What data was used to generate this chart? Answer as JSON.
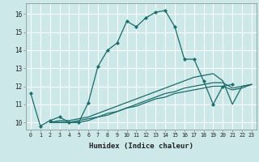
{
  "xlabel": "Humidex (Indice chaleur)",
  "bg_color": "#cce8e8",
  "grid_color": "#ffffff",
  "line_color": "#1a6b6b",
  "xlim": [
    -0.5,
    23.5
  ],
  "ylim": [
    9.6,
    16.6
  ],
  "yticks": [
    10,
    11,
    12,
    13,
    14,
    15,
    16
  ],
  "xticks": [
    0,
    1,
    2,
    3,
    4,
    5,
    6,
    7,
    8,
    9,
    10,
    11,
    12,
    13,
    14,
    15,
    16,
    17,
    18,
    19,
    20,
    21,
    22,
    23
  ],
  "series": [
    {
      "x": [
        0,
        1,
        2,
        3,
        4,
        5,
        6,
        7,
        8,
        9,
        10,
        11,
        12,
        13,
        14,
        15,
        16,
        17,
        18,
        19,
        20,
        21
      ],
      "y": [
        11.6,
        9.8,
        10.1,
        10.3,
        10.0,
        10.0,
        11.1,
        13.1,
        14.0,
        14.4,
        15.6,
        15.3,
        15.8,
        16.1,
        16.2,
        15.3,
        13.5,
        13.5,
        12.3,
        11.0,
        12.0,
        12.1
      ],
      "marker": true
    },
    {
      "x": [
        2,
        3,
        4,
        5,
        6,
        7,
        8,
        9,
        10,
        11,
        12,
        13,
        14,
        15,
        16,
        17,
        18,
        19,
        20,
        21,
        22,
        23
      ],
      "y": [
        10.0,
        10.1,
        10.1,
        10.2,
        10.3,
        10.5,
        10.7,
        10.9,
        11.1,
        11.3,
        11.5,
        11.7,
        11.9,
        12.1,
        12.3,
        12.5,
        12.6,
        12.7,
        12.3,
        11.0,
        12.0,
        12.1
      ],
      "marker": false
    },
    {
      "x": [
        2,
        3,
        4,
        5,
        6,
        7,
        8,
        9,
        10,
        11,
        12,
        13,
        14,
        15,
        16,
        17,
        18,
        19,
        20,
        21,
        22,
        23
      ],
      "y": [
        10.0,
        10.0,
        10.0,
        10.1,
        10.2,
        10.3,
        10.5,
        10.6,
        10.8,
        11.0,
        11.2,
        11.4,
        11.6,
        11.7,
        11.9,
        12.0,
        12.1,
        12.2,
        12.2,
        11.9,
        12.0,
        12.1
      ],
      "marker": false
    },
    {
      "x": [
        2,
        3,
        4,
        5,
        6,
        7,
        8,
        9,
        10,
        11,
        12,
        13,
        14,
        15,
        16,
        17,
        18,
        19,
        20,
        21,
        22,
        23
      ],
      "y": [
        10.0,
        10.0,
        10.0,
        10.0,
        10.1,
        10.3,
        10.4,
        10.6,
        10.8,
        10.9,
        11.1,
        11.3,
        11.4,
        11.6,
        11.7,
        11.8,
        11.9,
        12.0,
        12.0,
        11.8,
        11.9,
        12.1
      ],
      "marker": false
    }
  ]
}
